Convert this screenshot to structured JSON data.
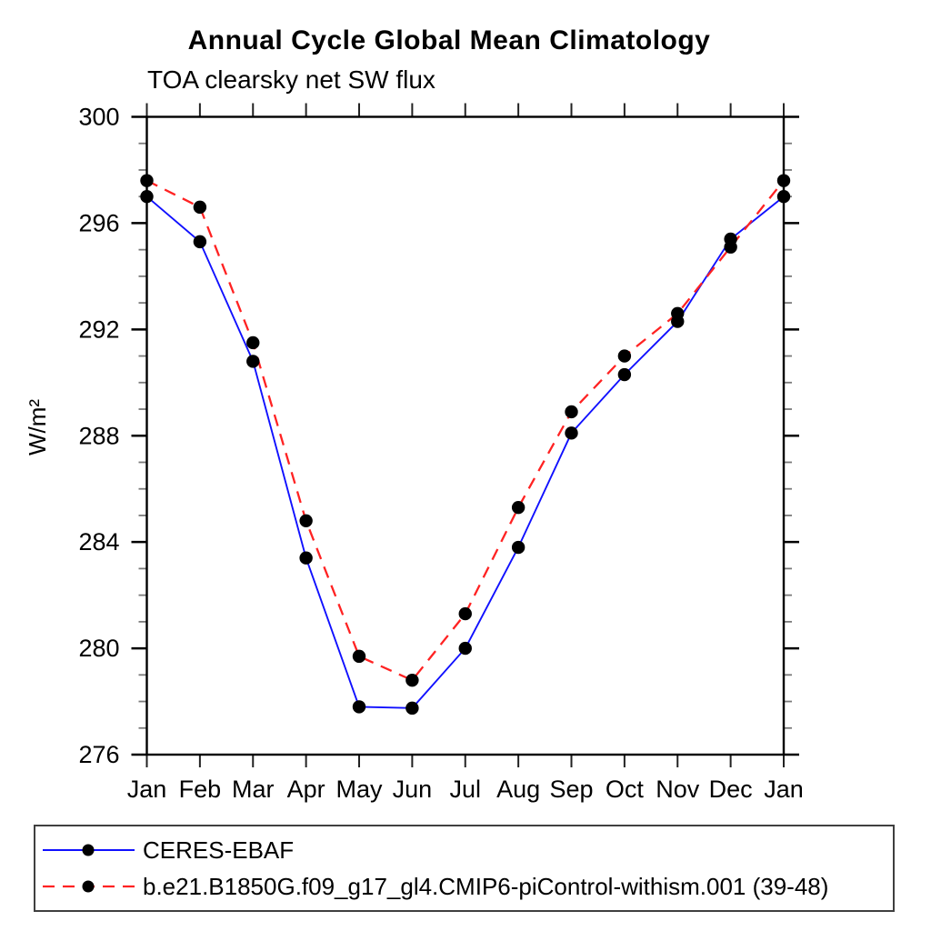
{
  "chart_data": {
    "type": "line",
    "title": "Annual Cycle Global Mean Climatology",
    "subtitle": "TOA clearsky net SW flux",
    "xlabel": "",
    "ylabel": "W/m²",
    "categories": [
      "Jan",
      "Feb",
      "Mar",
      "Apr",
      "May",
      "Jun",
      "Jul",
      "Aug",
      "Sep",
      "Oct",
      "Nov",
      "Dec",
      "Jan"
    ],
    "yticks": [
      276,
      280,
      284,
      288,
      292,
      296,
      300
    ],
    "ylim": [
      276,
      300
    ],
    "minor_y_interval": 1,
    "grid": false,
    "legend_position": "bottom",
    "axis_color": "#000000",
    "minor_tick_color": "#7a7a7a",
    "marker_color": "#000000",
    "series": [
      {
        "name": "CERES-EBAF",
        "color": "#1010ff",
        "line_style": "solid",
        "marker": "filled-circle",
        "values": [
          297.0,
          295.3,
          290.8,
          283.4,
          277.8,
          277.75,
          280.0,
          283.8,
          288.1,
          290.3,
          292.3,
          295.4,
          297.0
        ]
      },
      {
        "name": "b.e21.B1850G.f09_g17_gl4.CMIP6-piControl-withism.001 (39-48)",
        "color": "#ff2222",
        "line_style": "dashed",
        "marker": "filled-circle",
        "values": [
          297.6,
          296.6,
          291.5,
          284.8,
          279.7,
          278.8,
          281.3,
          285.3,
          288.9,
          291.0,
          292.6,
          295.1,
          297.6
        ]
      }
    ]
  }
}
